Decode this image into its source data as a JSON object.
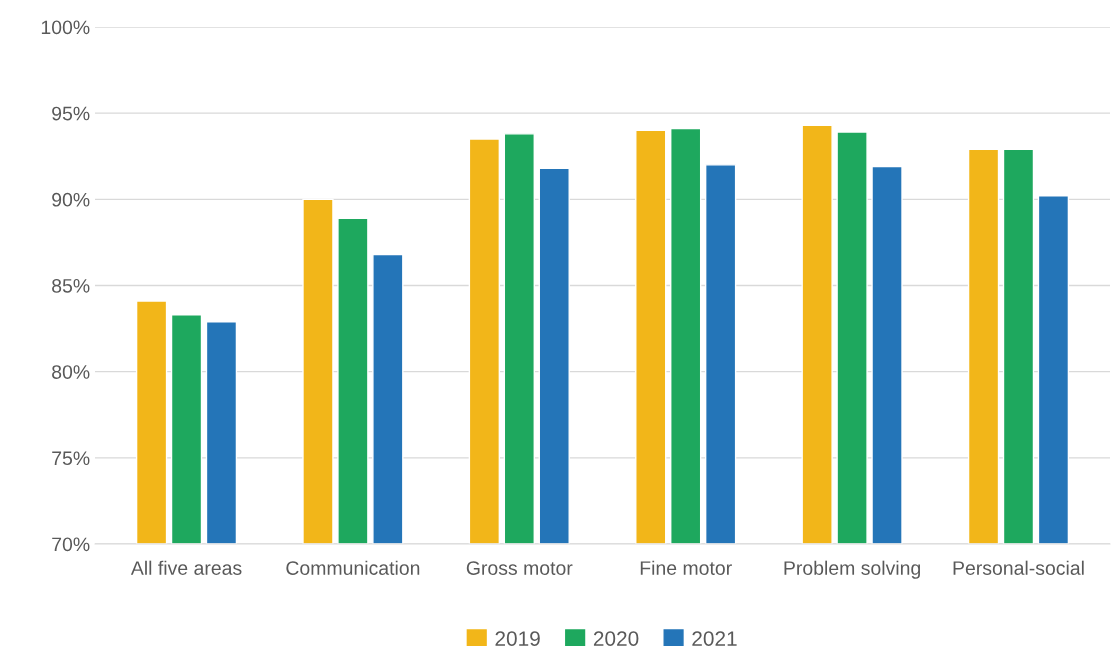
{
  "chart_data": {
    "type": "bar",
    "categories": [
      "All five areas",
      "Communication",
      "Gross motor",
      "Fine motor",
      "Problem solving",
      "Personal-social"
    ],
    "series": [
      {
        "name": "2019",
        "color": "#f2b619",
        "values": [
          84.1,
          90.0,
          93.5,
          94.0,
          94.3,
          92.9
        ]
      },
      {
        "name": "2020",
        "color": "#1ea85e",
        "values": [
          83.3,
          88.9,
          93.8,
          94.1,
          93.9,
          92.9
        ]
      },
      {
        "name": "2021",
        "color": "#2475b8",
        "values": [
          82.9,
          86.8,
          91.8,
          92.0,
          91.9,
          90.2
        ]
      }
    ],
    "ylim": [
      70,
      100
    ],
    "yticks": [
      {
        "value": 70,
        "label": "70%"
      },
      {
        "value": 75,
        "label": "75%"
      },
      {
        "value": 80,
        "label": "80%"
      },
      {
        "value": 85,
        "label": "85%"
      },
      {
        "value": 90,
        "label": "90%"
      },
      {
        "value": 95,
        "label": "95%"
      },
      {
        "value": 100,
        "label": "100%"
      }
    ],
    "grid": "y",
    "legend": "bottom"
  }
}
